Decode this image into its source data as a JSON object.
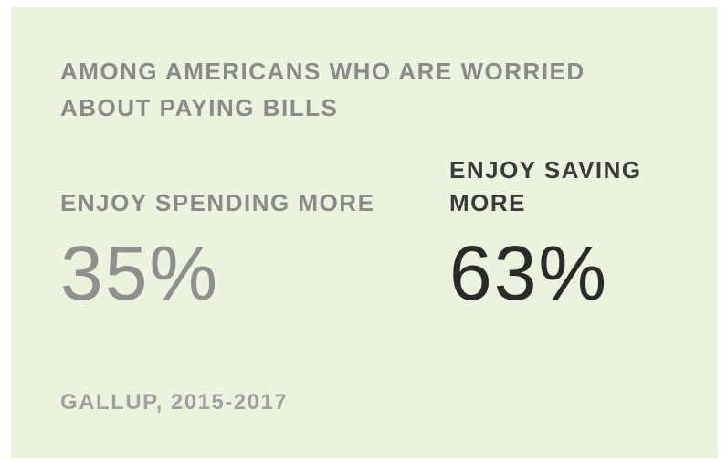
{
  "card": {
    "heading": "AMONG AMERICANS WHO ARE WORRIED ABOUT PAYING BILLS",
    "stats": [
      {
        "label": "ENJOY SPENDING MORE",
        "value": "35%"
      },
      {
        "label": "ENJOY SAVING MORE",
        "value": "63%"
      }
    ],
    "source": "GALLUP, 2015-2017"
  },
  "colors": {
    "background": "#ebf2dd",
    "muted_text": "#8a8a8a",
    "dark_text": "#2a2a2a"
  }
}
